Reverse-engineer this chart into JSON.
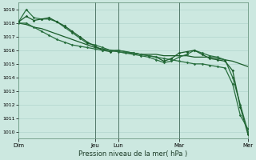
{
  "xlabel": "Pression niveau de la mer( hPa )",
  "ylim": [
    1009.5,
    1019.5
  ],
  "yticks": [
    1010,
    1011,
    1012,
    1013,
    1014,
    1015,
    1016,
    1017,
    1018,
    1019
  ],
  "background_color": "#cce8e0",
  "grid_color": "#aacfc8",
  "line_dark": "#1a5c2a",
  "line_mid": "#2a7040",
  "day_labels": [
    "Dim",
    "Jeu",
    "Lun",
    "Mar",
    "Mer"
  ],
  "day_positions": [
    0,
    10,
    13,
    21,
    30
  ],
  "vline_positions": [
    10,
    13,
    21,
    30
  ],
  "series1_x": [
    0,
    1,
    2,
    3,
    4,
    5,
    6,
    7,
    8,
    9,
    10,
    11,
    12,
    13,
    14,
    15,
    16,
    17,
    18,
    19,
    20,
    21,
    22,
    23,
    24,
    25,
    26,
    27,
    28,
    29,
    30
  ],
  "series1_y": [
    1018.0,
    1017.9,
    1017.7,
    1017.6,
    1017.4,
    1017.2,
    1017.0,
    1016.8,
    1016.6,
    1016.4,
    1016.2,
    1016.1,
    1016.0,
    1015.9,
    1015.8,
    1015.8,
    1015.7,
    1015.7,
    1015.7,
    1015.6,
    1015.6,
    1015.6,
    1015.6,
    1015.5,
    1015.5,
    1015.5,
    1015.4,
    1015.3,
    1015.2,
    1015.0,
    1014.8
  ],
  "series2_x": [
    0,
    1,
    2,
    3,
    4,
    5,
    6,
    7,
    8,
    9,
    10,
    11,
    12,
    13,
    14,
    15,
    16,
    17,
    18,
    19,
    20,
    21,
    22,
    23,
    24,
    25,
    26,
    27,
    28,
    29,
    30
  ],
  "series2_y": [
    1018.1,
    1019.0,
    1018.4,
    1018.3,
    1018.3,
    1018.1,
    1017.7,
    1017.3,
    1016.9,
    1016.5,
    1016.4,
    1016.2,
    1016.0,
    1015.9,
    1015.8,
    1015.7,
    1015.6,
    1015.5,
    1015.3,
    1015.1,
    1015.2,
    1015.5,
    1015.7,
    1016.0,
    1015.8,
    1015.6,
    1015.5,
    1015.3,
    1014.0,
    1012.0,
    1010.0
  ],
  "series3_x": [
    0,
    1,
    2,
    3,
    4,
    5,
    6,
    7,
    8,
    9,
    10,
    11,
    12,
    13,
    14,
    15,
    16,
    17,
    18,
    19,
    20,
    21,
    22,
    23,
    24,
    25,
    26,
    27,
    28,
    29,
    30
  ],
  "series3_y": [
    1018.1,
    1018.5,
    1018.2,
    1018.3,
    1018.4,
    1018.1,
    1017.8,
    1017.4,
    1017.0,
    1016.6,
    1016.3,
    1016.0,
    1015.9,
    1016.0,
    1015.9,
    1015.8,
    1015.7,
    1015.6,
    1015.5,
    1015.2,
    1015.4,
    1015.8,
    1015.9,
    1016.0,
    1015.7,
    1015.4,
    1015.3,
    1015.2,
    1014.5,
    1011.8,
    1009.8
  ],
  "series4_x": [
    0,
    1,
    2,
    3,
    4,
    5,
    6,
    7,
    8,
    9,
    10,
    11,
    12,
    13,
    14,
    15,
    16,
    17,
    18,
    19,
    20,
    21,
    22,
    23,
    24,
    25,
    26,
    27,
    28,
    29,
    30
  ],
  "series4_y": [
    1018.0,
    1018.0,
    1017.7,
    1017.4,
    1017.1,
    1016.8,
    1016.6,
    1016.4,
    1016.3,
    1016.2,
    1016.1,
    1016.0,
    1016.0,
    1016.0,
    1015.9,
    1015.8,
    1015.7,
    1015.6,
    1015.5,
    1015.4,
    1015.3,
    1015.2,
    1015.1,
    1015.0,
    1015.0,
    1014.9,
    1014.8,
    1014.7,
    1013.5,
    1011.2,
    1010.2
  ]
}
